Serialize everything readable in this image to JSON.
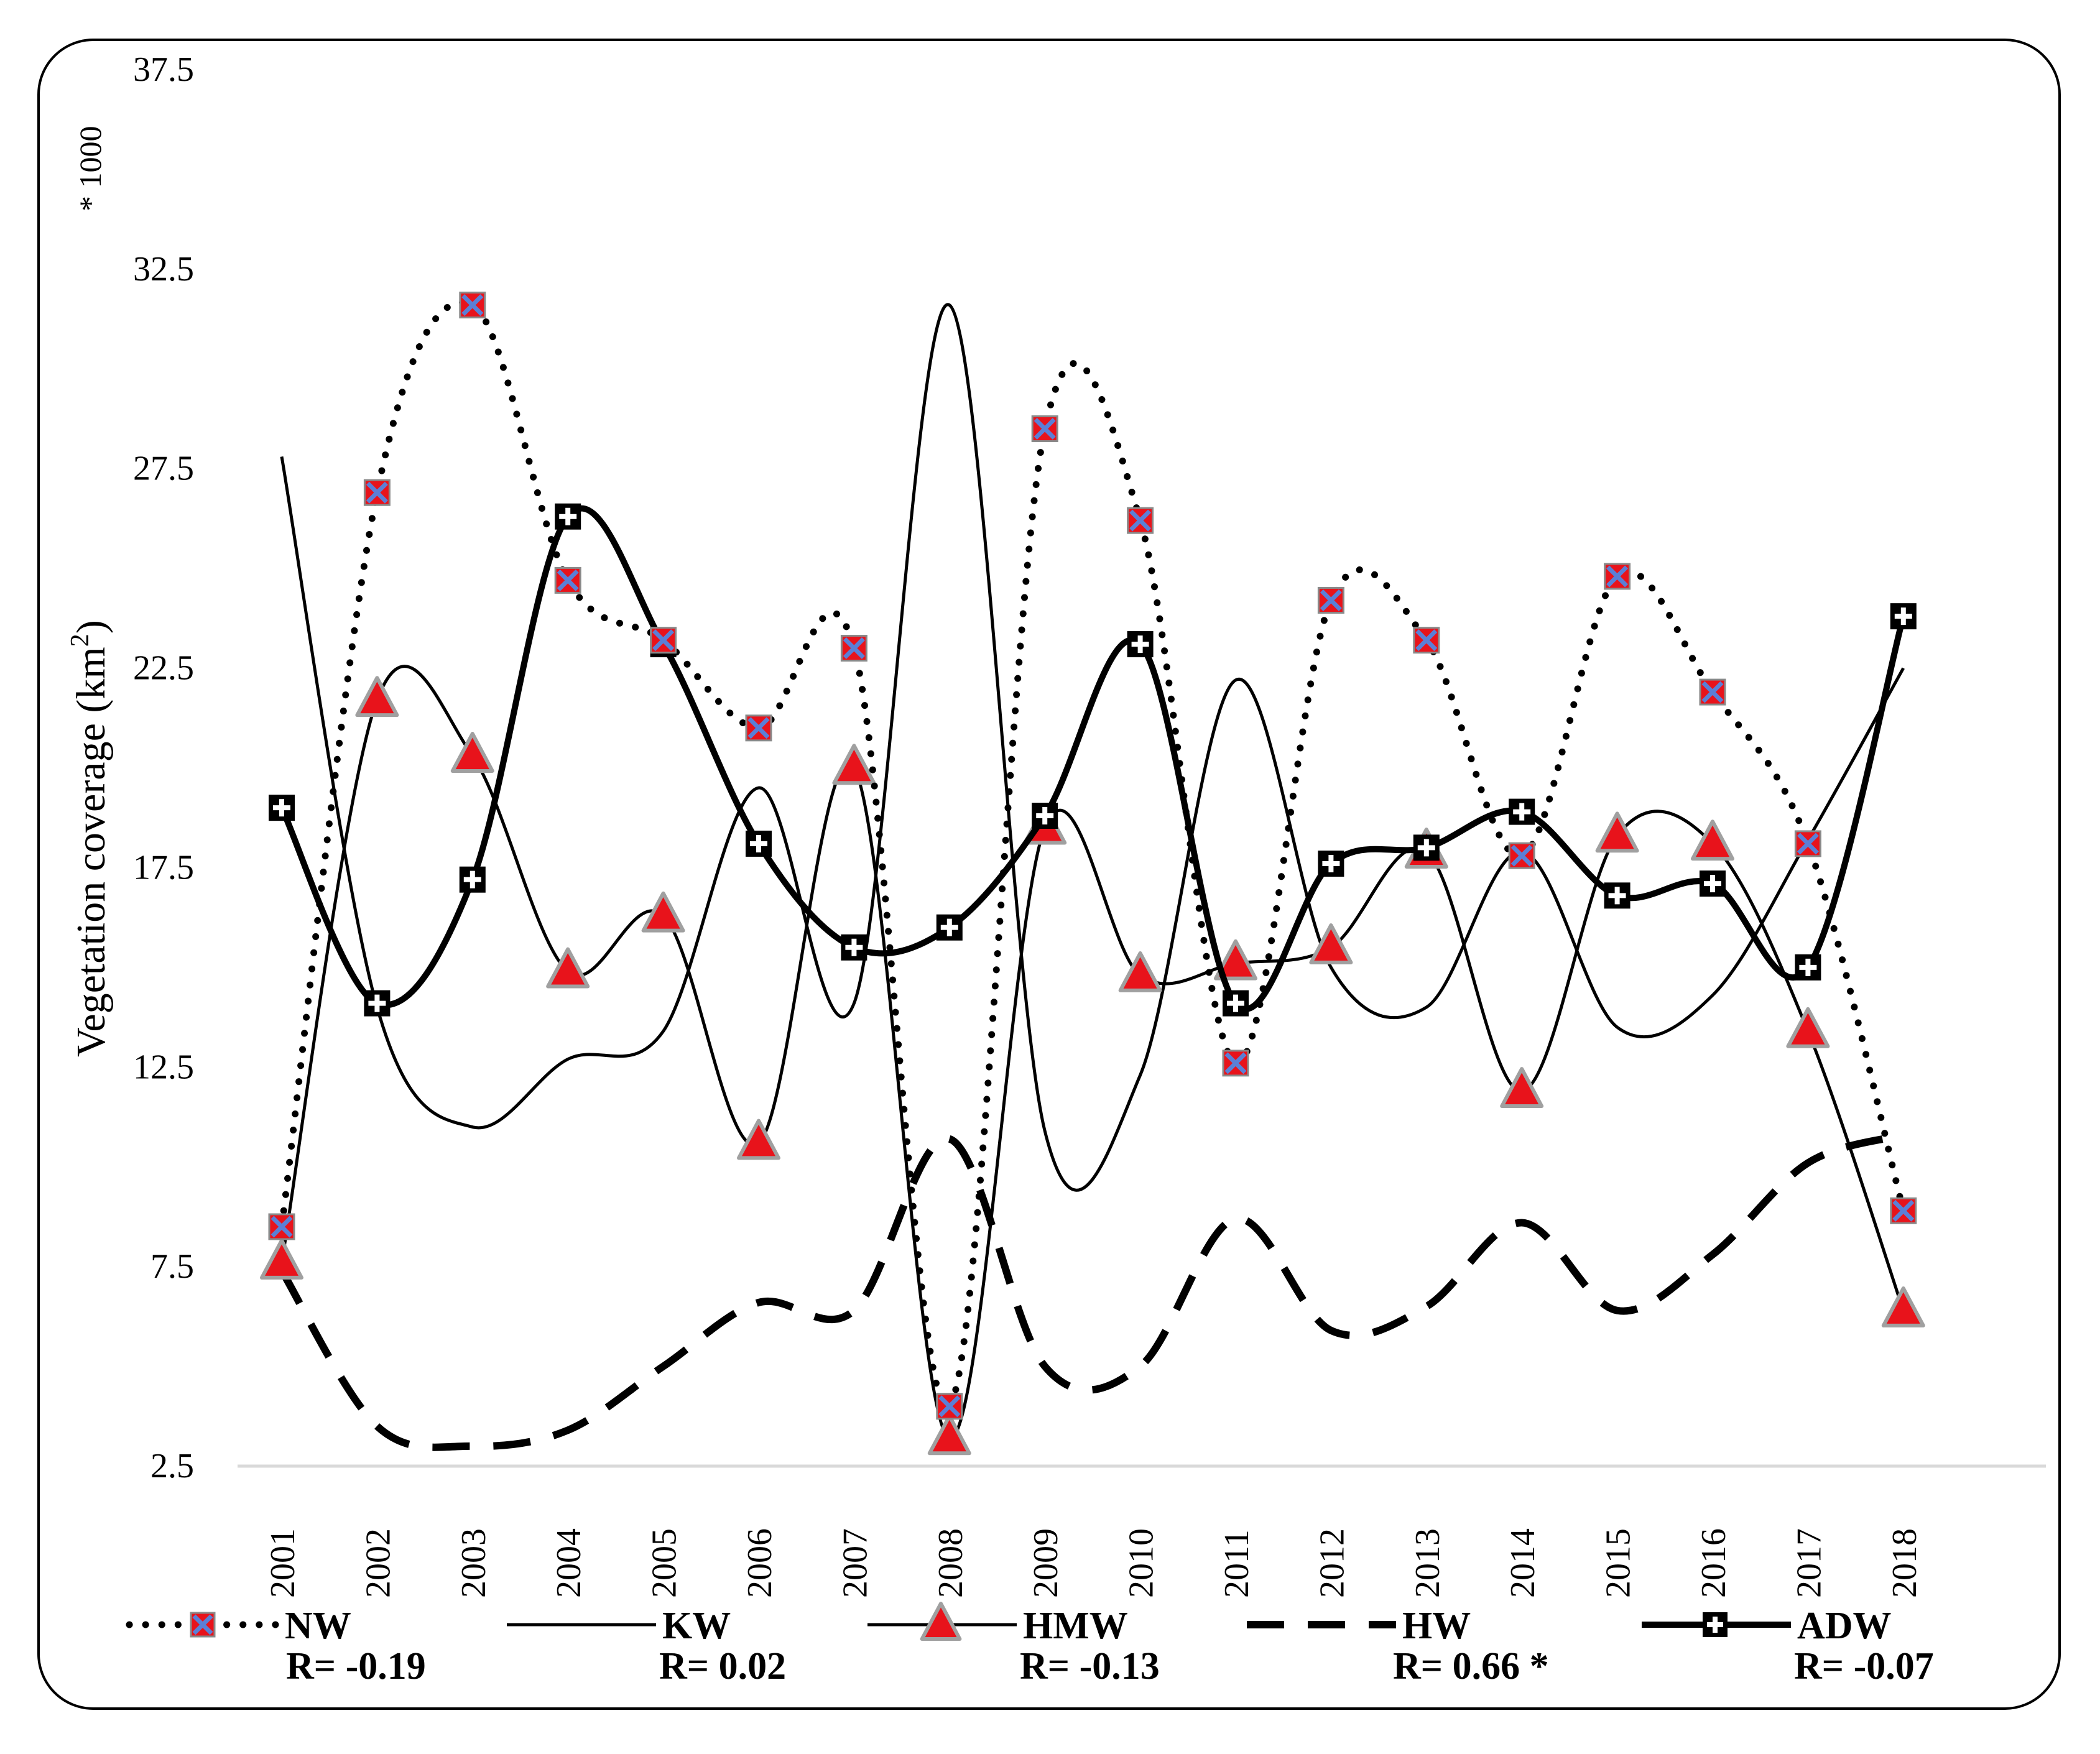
{
  "chart_data": {
    "type": "line",
    "title": "",
    "ylabel": "Vegetation coverage (km",
    "ylabel_sup": "2",
    "ylabel_close": ")",
    "y_multiplier": "* 1000",
    "xlabel": "",
    "ylim": [
      2.5,
      37.5
    ],
    "yticks": [
      "2.5",
      "7.5",
      "12.5",
      "17.5",
      "22.5",
      "27.5",
      "32.5",
      "37.5"
    ],
    "x": [
      "2001",
      "2002",
      "2003",
      "2004",
      "2005",
      "2006",
      "2007",
      "2008",
      "2009",
      "2010",
      "2011",
      "2012",
      "2013",
      "2014",
      "2015",
      "2016",
      "2017",
      "2018"
    ],
    "smooth": true,
    "series": [
      {
        "name": "NW",
        "r_label": "R= -0.19",
        "style": "dotted",
        "marker": "x-square",
        "values": [
          8.5,
          26.9,
          31.6,
          24.7,
          23.2,
          21.0,
          23.0,
          4.0,
          28.5,
          26.2,
          12.6,
          24.2,
          23.2,
          17.8,
          24.8,
          21.9,
          18.1,
          8.9
        ]
      },
      {
        "name": "KW",
        "r_label": "R= 0.02",
        "style": "thin",
        "marker": "none",
        "values": [
          27.8,
          14.0,
          11.0,
          12.7,
          13.4,
          19.5,
          14.1,
          31.6,
          10.9,
          12.3,
          22.2,
          15.0,
          14.0,
          17.9,
          13.5,
          14.3,
          18.2,
          22.5
        ]
      },
      {
        "name": "HMW",
        "r_label": "R= -0.13",
        "style": "thin",
        "marker": "triangle",
        "values": [
          7.6,
          21.7,
          20.3,
          14.9,
          16.3,
          10.6,
          20.0,
          3.2,
          18.5,
          14.8,
          15.1,
          15.5,
          17.9,
          11.9,
          18.3,
          18.1,
          13.4,
          6.4
        ]
      },
      {
        "name": "HW",
        "r_label": "R= 0.66 *",
        "style": "dashed",
        "marker": "none",
        "values": [
          7.4,
          3.5,
          3.0,
          3.4,
          5.0,
          6.6,
          6.4,
          10.7,
          5.0,
          5.0,
          8.7,
          5.9,
          6.5,
          8.6,
          6.4,
          7.8,
          10.1,
          10.8
        ]
      },
      {
        "name": "ADW",
        "r_label": "R= -0.07",
        "style": "thick",
        "marker": "plus-square",
        "values": [
          19.0,
          14.1,
          17.2,
          26.3,
          23.1,
          18.1,
          15.5,
          16.0,
          18.8,
          23.1,
          14.1,
          17.6,
          18.0,
          18.9,
          16.8,
          17.1,
          15.0,
          23.8
        ]
      }
    ],
    "colors": {
      "line": "#000000",
      "marker_fill": "#e8131b",
      "marker_x": "#5b7fd6",
      "marker_edge": "#a0a0a0"
    },
    "legend_position": "bottom"
  }
}
